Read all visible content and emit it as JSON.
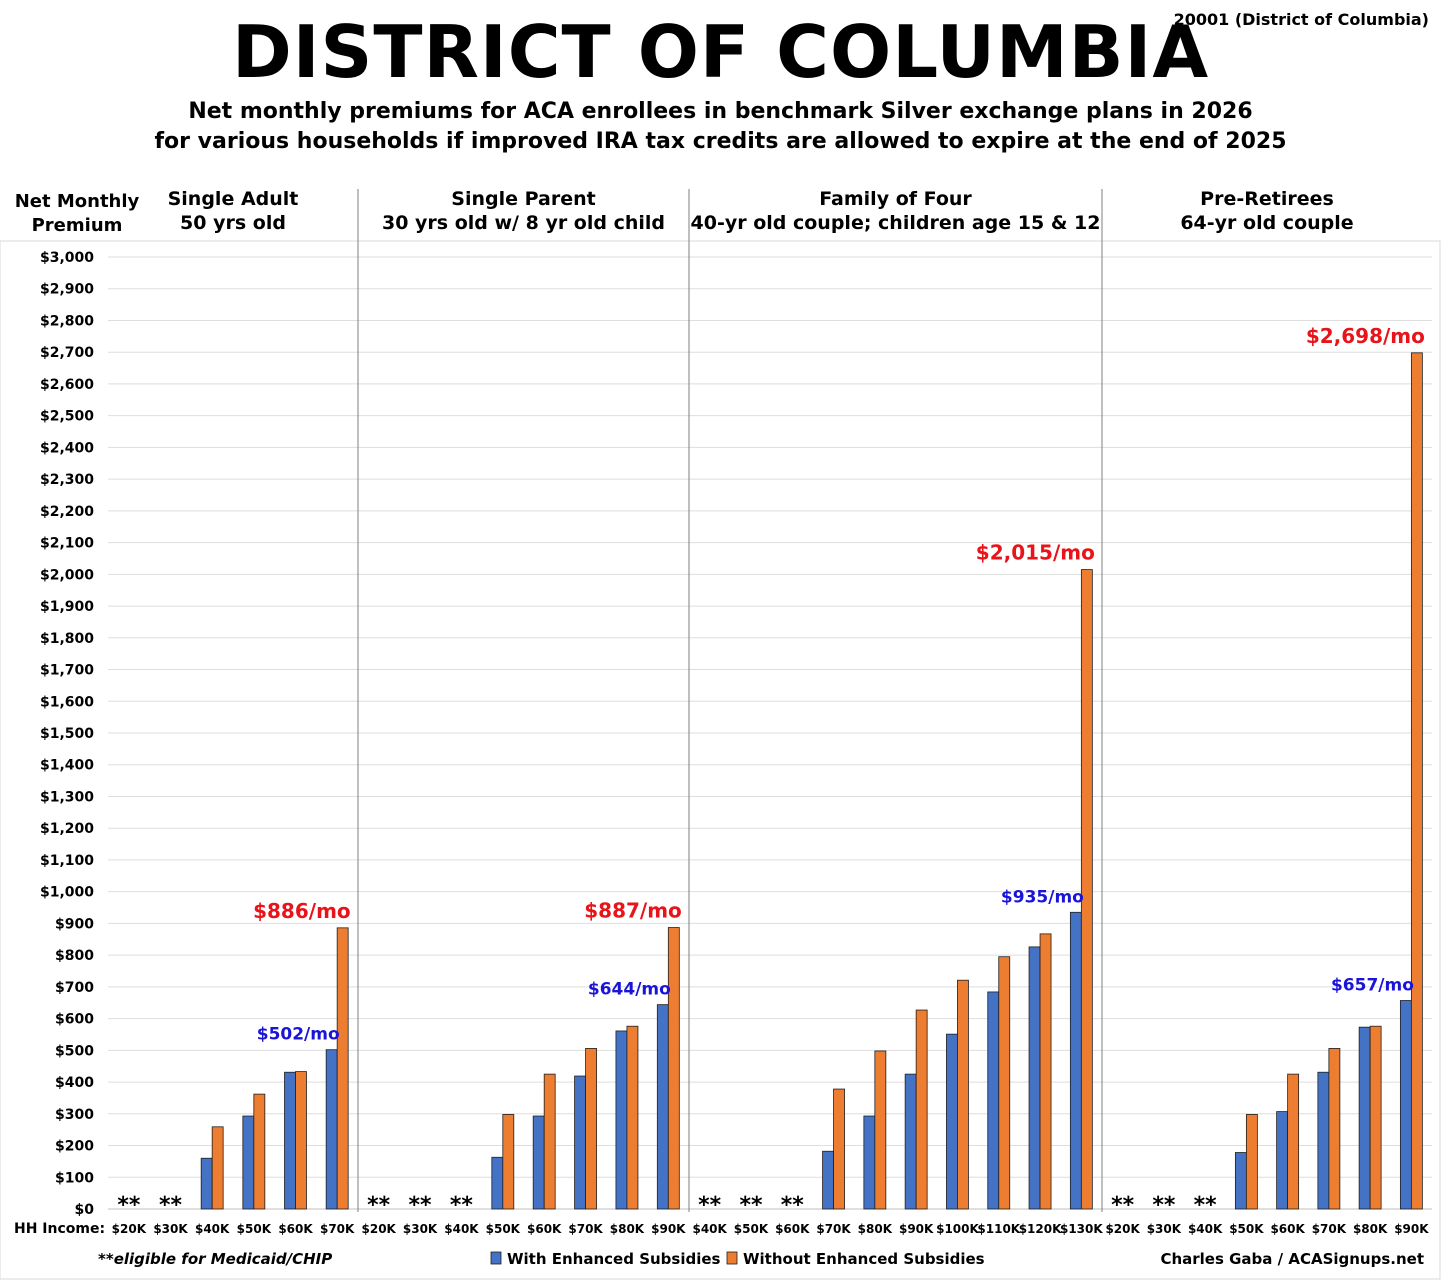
{
  "header": {
    "title": "DISTRICT OF COLUMBIA",
    "zip": "20001 (District of Columbia)",
    "subtitle_line1": "Net monthly premiums for ACA enrollees in benchmark Silver exchange plans in 2026",
    "subtitle_line2": "for various households if improved IRA tax credits are allowed to expire at the end of 2025"
  },
  "colors": {
    "with": "#4472C4",
    "without": "#ED7D31",
    "callout_red": "#E8141A",
    "callout_blue": "#1A14D8"
  },
  "chart_data": {
    "type": "bar",
    "ylabel": "Net Monthly Premium",
    "ylim": [
      0,
      3000
    ],
    "yticks": [
      "$0",
      "$100",
      "$200",
      "$300",
      "$400",
      "$500",
      "$600",
      "$700",
      "$800",
      "$900",
      "$1,000",
      "$1,100",
      "$1,200",
      "$1,300",
      "$1,400",
      "$1,500",
      "$1,600",
      "$1,700",
      "$1,800",
      "$1,900",
      "$2,000",
      "$2,100",
      "$2,200",
      "$2,300",
      "$2,400",
      "$2,500",
      "$2,600",
      "$2,700",
      "$2,800",
      "$2,900",
      "$3,000"
    ],
    "xlabel_prefix": "HH Income:",
    "grid": true,
    "series": [
      {
        "name": "With Enhanced Subsidies",
        "key": "with"
      },
      {
        "name": "Without Enhanced Subsidies",
        "key": "without"
      }
    ],
    "groups": [
      {
        "title_line1": "Single Adult",
        "title_line2": "50 yrs old",
        "categories": [
          "$20K",
          "$30K",
          "$40K",
          "$50K",
          "$60K",
          "$70K"
        ],
        "with": [
          null,
          null,
          160,
          293,
          431,
          502
        ],
        "without": [
          null,
          null,
          259,
          362,
          433,
          886
        ],
        "medicaid": [
          true,
          true,
          false,
          false,
          false,
          false
        ],
        "callout_without": "$886/mo",
        "callout_with": "$502/mo"
      },
      {
        "title_line1": "Single Parent",
        "title_line2": "30 yrs old w/ 8 yr old child",
        "categories": [
          "$20K",
          "$30K",
          "$40K",
          "$50K",
          "$60K",
          "$70K",
          "$80K",
          "$90K"
        ],
        "with": [
          null,
          null,
          null,
          163,
          293,
          419,
          561,
          644
        ],
        "without": [
          null,
          null,
          null,
          298,
          425,
          506,
          576,
          887
        ],
        "medicaid": [
          true,
          true,
          true,
          false,
          false,
          false,
          false,
          false
        ],
        "callout_without": "$887/mo",
        "callout_with": "$644/mo"
      },
      {
        "title_line1": "Family of Four",
        "title_line2": "40-yr old couple; children age 15 & 12",
        "categories": [
          "$40K",
          "$50K",
          "$60K",
          "$70K",
          "$80K",
          "$90K",
          "$100K",
          "$110K",
          "$120K",
          "$130K"
        ],
        "with": [
          null,
          null,
          null,
          182,
          293,
          425,
          551,
          684,
          826,
          935
        ],
        "without": [
          null,
          null,
          null,
          378,
          498,
          627,
          721,
          795,
          867,
          2015
        ],
        "medicaid": [
          true,
          true,
          true,
          false,
          false,
          false,
          false,
          false,
          false,
          false
        ],
        "callout_without": "$2,015/mo",
        "callout_with": "$935/mo"
      },
      {
        "title_line1": "Pre-Retirees",
        "title_line2": "64-yr old couple",
        "categories": [
          "$20K",
          "$30K",
          "$40K",
          "$50K",
          "$60K",
          "$70K",
          "$80K",
          "$90K"
        ],
        "with": [
          null,
          null,
          null,
          178,
          307,
          431,
          573,
          657
        ],
        "without": [
          null,
          null,
          null,
          298,
          425,
          506,
          576,
          2698
        ],
        "medicaid": [
          true,
          true,
          true,
          false,
          false,
          false,
          false,
          false
        ],
        "callout_without": "$2,698/mo",
        "callout_with": "$657/mo"
      }
    ],
    "medicaid_marker": "**",
    "footnote": "**eligible for Medicaid/CHIP",
    "credit": "Charles Gaba / ACASignups.net"
  }
}
